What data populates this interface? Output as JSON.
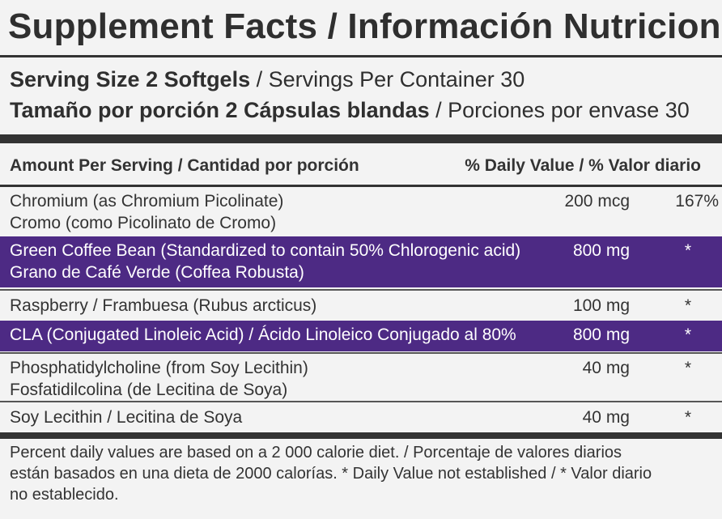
{
  "title": "Supplement Facts / Información Nutricional",
  "serving": {
    "line1_bold": "Serving Size 2 Softgels",
    "line1_rest": " / Servings Per Container 30",
    "line2_bold": "Tamaño por porción 2 Cápsulas blandas",
    "line2_rest": " / Porciones por envase 30"
  },
  "table_header": {
    "amount_label": "Amount Per Serving / Cantidad por porción",
    "daily_value_label": "% Daily Value / % Valor diario"
  },
  "rows": [
    {
      "name_line1": "Chromium (as Chromium Picolinate)",
      "name_line2": "Cromo (como Picolinato de Cromo)",
      "amount": "200 mcg",
      "daily_value": "167%",
      "highlighted": false
    },
    {
      "name_line1": "Green Coffee Bean (Standardized to contain 50% Chlorogenic acid)",
      "name_line2": "Grano de Café Verde (Coffea Robusta)",
      "amount": "800 mg",
      "daily_value": "*",
      "highlighted": true
    },
    {
      "name_line1": "Raspberry / Frambuesa (Rubus arcticus)",
      "name_line2": "",
      "amount": "100 mg",
      "daily_value": "*",
      "highlighted": false
    },
    {
      "name_line1": "CLA (Conjugated Linoleic Acid) / Ácido Linoleico Conjugado al 80%",
      "name_line2": "",
      "amount": "800 mg",
      "daily_value": "*",
      "highlighted": true
    },
    {
      "name_line1": "Phosphatidylcholine (from Soy Lecithin)",
      "name_line2": "Fosfatidilcolina (de Lecitina de Soya)",
      "amount": "40 mg",
      "daily_value": "*",
      "highlighted": false
    },
    {
      "name_line1": "Soy Lecithin / Lecitina de Soya",
      "name_line2": "",
      "amount": "40 mg",
      "daily_value": "*",
      "highlighted": false
    }
  ],
  "footnote": {
    "line1": "Percent daily values are based on a 2 000 calorie diet.  / Porcentaje de valores diarios",
    "line2": "están basados en una dieta de 2000 calorías. * Daily Value not established / * Valor diario",
    "line3": "no establecido."
  },
  "colors": {
    "highlight": "#4d2a84",
    "background": "#f3f3f3",
    "rule": "#333333"
  }
}
